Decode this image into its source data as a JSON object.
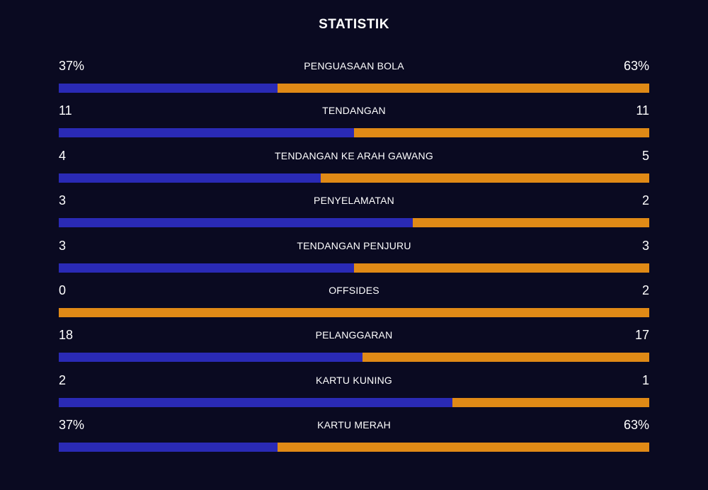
{
  "title": "STATISTIK",
  "colors": {
    "background": "#0a0a21",
    "home": "#2a2ab5",
    "away": "#e08a16",
    "text": "#ffffff"
  },
  "stats": [
    {
      "label": "PENGUASAAN BOLA",
      "home": "37%",
      "away": "63%",
      "home_share": 0.37
    },
    {
      "label": "TENDANGAN",
      "home": "11",
      "away": "11",
      "home_share": 0.5
    },
    {
      "label": "TENDANGAN KE ARAH GAWANG",
      "home": "4",
      "away": "5",
      "home_share": 0.444
    },
    {
      "label": "PENYELAMATAN",
      "home": "3",
      "away": "2",
      "home_share": 0.6
    },
    {
      "label": "TENDANGAN PENJURU",
      "home": "3",
      "away": "3",
      "home_share": 0.5
    },
    {
      "label": "OFFSIDES",
      "home": "0",
      "away": "2",
      "home_share": 0.0
    },
    {
      "label": "PELANGGARAN",
      "home": "18",
      "away": "17",
      "home_share": 0.514
    },
    {
      "label": "KARTU KUNING",
      "home": "2",
      "away": "1",
      "home_share": 0.667
    },
    {
      "label": "KARTU MERAH",
      "home": "37%",
      "away": "63%",
      "home_share": 0.37
    }
  ]
}
